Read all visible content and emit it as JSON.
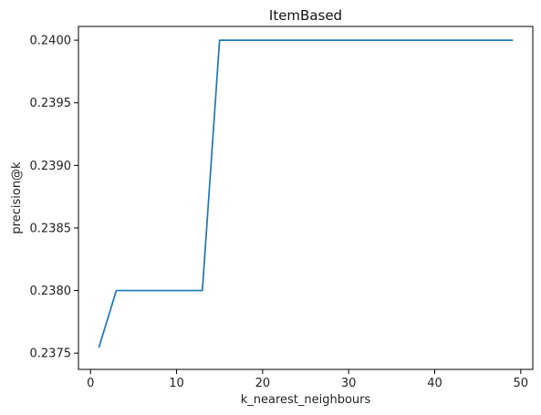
{
  "chart_data": {
    "type": "line",
    "title": "ItemBased",
    "xlabel": "k_nearest_neighbours",
    "ylabel": "precision@k",
    "xlim": [
      -1.4,
      51.4
    ],
    "ylim": [
      0.23737,
      0.24011
    ],
    "grid": false,
    "x_ticks": [
      {
        "value": 0,
        "label": "0"
      },
      {
        "value": 10,
        "label": "10"
      },
      {
        "value": 20,
        "label": "20"
      },
      {
        "value": 30,
        "label": "30"
      },
      {
        "value": 40,
        "label": "40"
      },
      {
        "value": 50,
        "label": "50"
      }
    ],
    "y_ticks": [
      {
        "value": 0.2375,
        "label": "0.2375"
      },
      {
        "value": 0.238,
        "label": "0.2380"
      },
      {
        "value": 0.2385,
        "label": "0.2385"
      },
      {
        "value": 0.239,
        "label": "0.2390"
      },
      {
        "value": 0.2395,
        "label": "0.2395"
      },
      {
        "value": 0.24,
        "label": "0.2400"
      }
    ],
    "series": [
      {
        "color": "#1f77b4",
        "x": [
          1,
          3,
          5,
          7,
          9,
          11,
          13,
          15,
          17,
          19,
          21,
          23,
          25,
          27,
          29,
          31,
          33,
          35,
          37,
          39,
          41,
          43,
          45,
          47,
          49
        ],
        "y": [
          0.23755,
          0.238,
          0.238,
          0.238,
          0.238,
          0.238,
          0.238,
          0.24,
          0.24,
          0.24,
          0.24,
          0.24,
          0.24,
          0.24,
          0.24,
          0.24,
          0.24,
          0.24,
          0.24,
          0.24,
          0.24,
          0.24,
          0.24,
          0.24,
          0.24
        ]
      }
    ]
  }
}
